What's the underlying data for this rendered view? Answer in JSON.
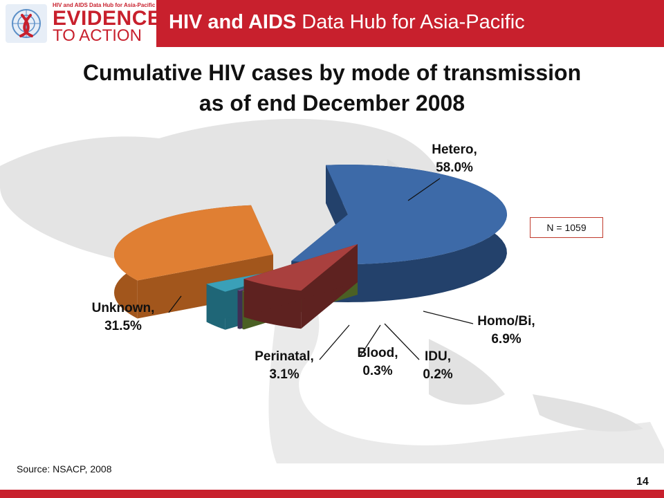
{
  "header": {
    "logo_small_text": "HIV and AIDS Data Hub for Asia-Pacific",
    "logo_line1": "EVIDENCE",
    "logo_line2": "TO ACTION",
    "title_bold": "HIV and AIDS",
    "title_rest": " Data Hub for Asia-Pacific"
  },
  "slide": {
    "title_line1": "Cumulative HIV cases by mode of transmission",
    "title_line2": "as of end December 2008",
    "n_label": "N = 1059",
    "source": "Source: NSACP, 2008",
    "page_number": "14"
  },
  "chart_data": {
    "type": "pie",
    "title": "Cumulative HIV cases by mode of transmission as of end December 2008",
    "categories": [
      "Hetero",
      "Homo/Bi",
      "IDU",
      "Blood",
      "Perinatal",
      "Unknown"
    ],
    "values": [
      58.0,
      6.9,
      0.2,
      0.3,
      3.1,
      31.5
    ],
    "labels": [
      {
        "name": "Hetero,",
        "value": "58.0%"
      },
      {
        "name": "Homo/Bi,",
        "value": "6.9%"
      },
      {
        "name": "IDU,",
        "value": "0.2%"
      },
      {
        "name": "Blood,",
        "value": "0.3%"
      },
      {
        "name": "Perinatal,",
        "value": "3.1%"
      },
      {
        "name": "Unknown,",
        "value": "31.5%"
      }
    ],
    "colors": [
      "#3d6aa8",
      "#a9403e",
      "#7a9a3c",
      "#6b4f8a",
      "#3aa0b8",
      "#e07f33"
    ],
    "side_colors": [
      "#23416b",
      "#5e2220",
      "#4b6024",
      "#3f2e55",
      "#1f6677",
      "#a2561c"
    ],
    "unit": "%"
  }
}
